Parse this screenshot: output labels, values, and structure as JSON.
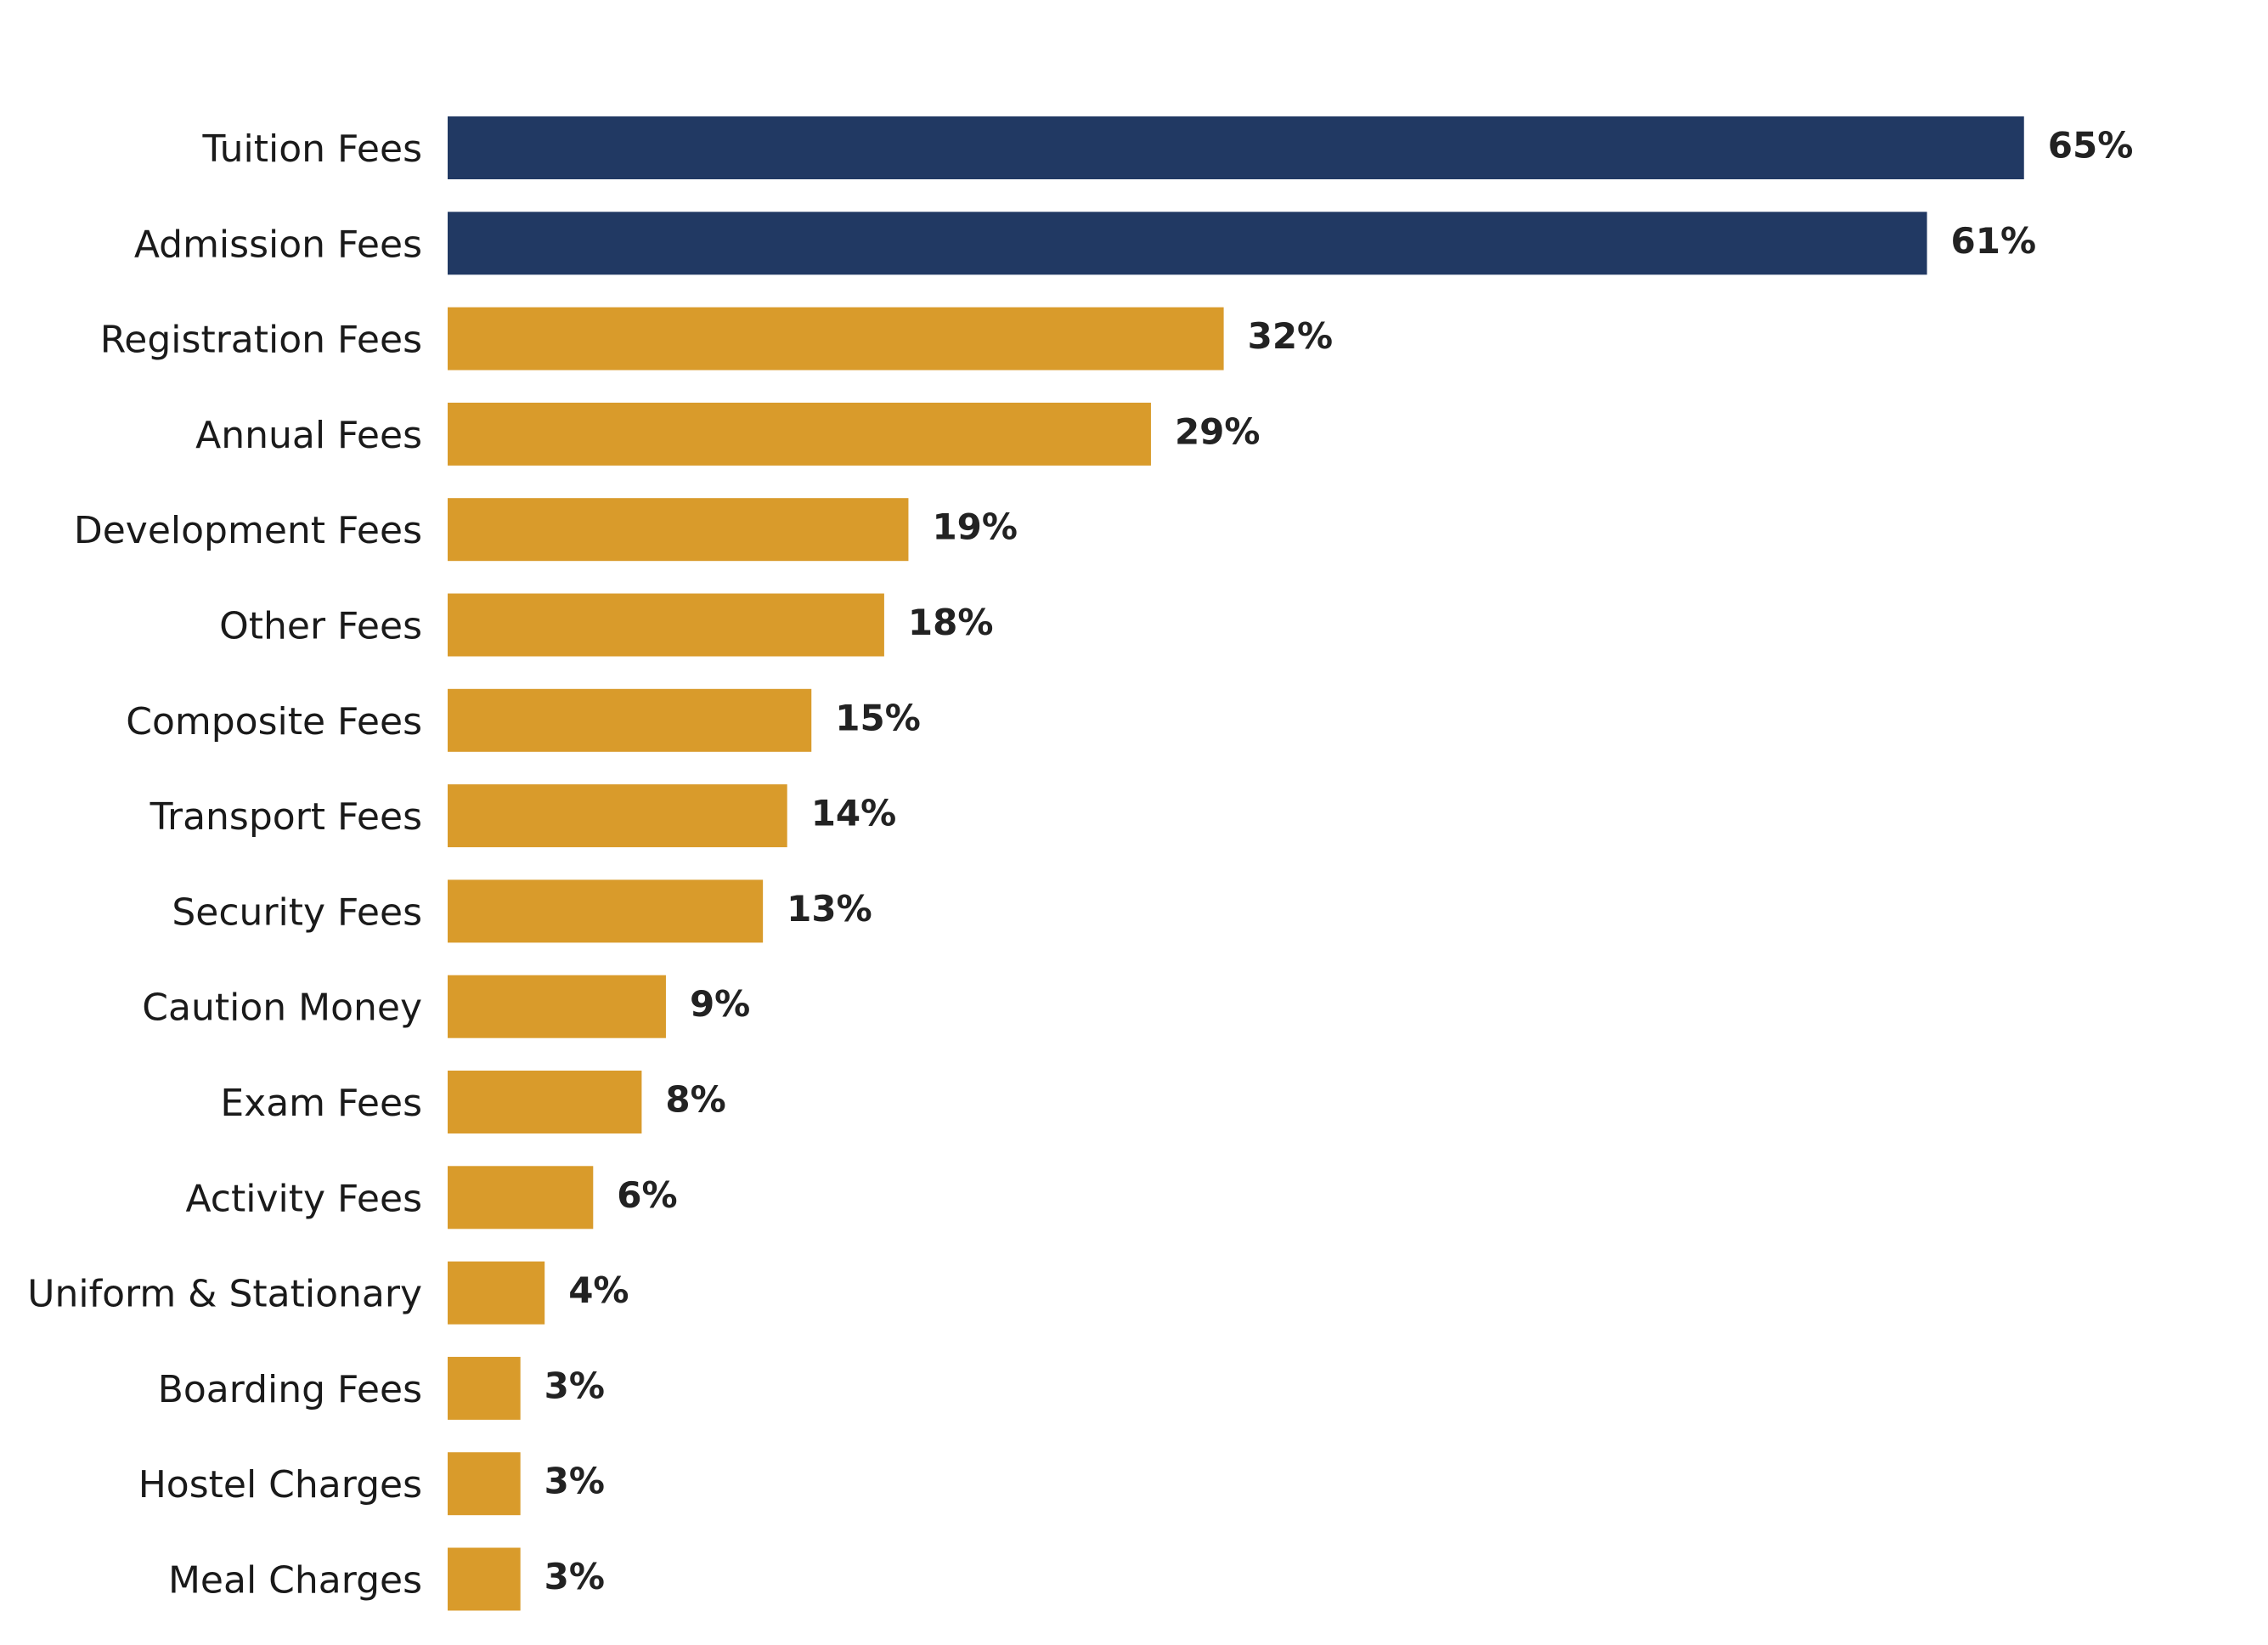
{
  "chart_data": {
    "type": "bar",
    "orientation": "horizontal",
    "title": "",
    "xlabel": "",
    "ylabel": "",
    "categories": [
      "Tuition Fees",
      "Admission Fees",
      "Registration Fees",
      "Annual Fees",
      "Development Fees",
      "Other Fees",
      "Composite Fees",
      "Transport Fees",
      "Security Fees",
      "Caution Money",
      "Exam Fees",
      "Activity Fees",
      "Uniform & Stationary",
      "Boarding Fees",
      "Hostel Charges",
      "Meal Charges"
    ],
    "values": [
      65,
      61,
      32,
      29,
      19,
      18,
      15,
      14,
      13,
      9,
      8,
      6,
      4,
      3,
      3,
      3
    ],
    "value_labels": [
      "65%",
      "61%",
      "32%",
      "29%",
      "19%",
      "18%",
      "15%",
      "14%",
      "13%",
      "9%",
      "8%",
      "6%",
      "4%",
      "3%",
      "3%",
      "3%"
    ],
    "xlim": [
      0,
      70
    ],
    "grid": false,
    "legend": "none",
    "highlight_count": 2,
    "colors": {
      "highlight": "#213963",
      "default": "#D99B2B"
    }
  }
}
